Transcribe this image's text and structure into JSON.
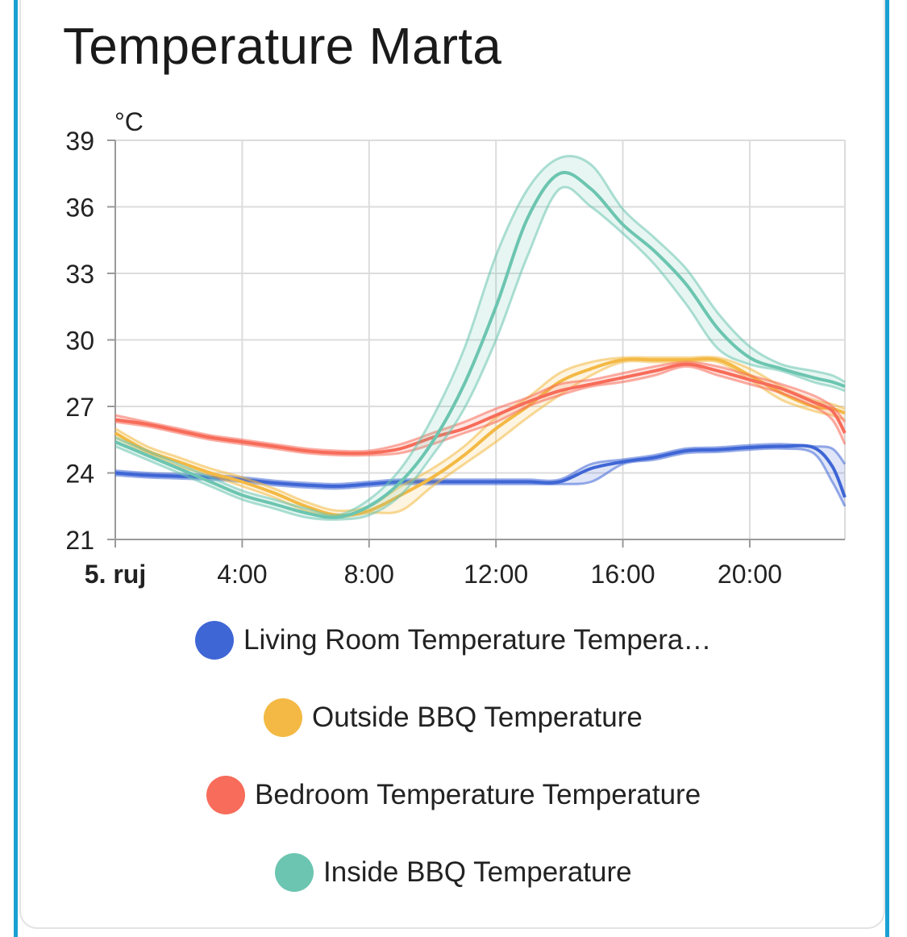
{
  "card": {
    "title": "Temperature Marta"
  },
  "chart_data": {
    "type": "line",
    "title": "Temperature Marta",
    "ylabel": "°C",
    "xlabel": "",
    "ylim": [
      21,
      39
    ],
    "yticks": [
      "21",
      "24",
      "27",
      "30",
      "33",
      "36",
      "39"
    ],
    "xlim": [
      0,
      23
    ],
    "xticks": [
      {
        "hour": 0,
        "label": "5. ruj",
        "bold": true
      },
      {
        "hour": 4,
        "label": "4:00"
      },
      {
        "hour": 8,
        "label": "8:00"
      },
      {
        "hour": 12,
        "label": "12:00"
      },
      {
        "hour": 16,
        "label": "16:00"
      },
      {
        "hour": 20,
        "label": "20:00"
      }
    ],
    "grid": true,
    "legend_position": "bottom",
    "x": [
      0,
      1,
      2,
      3,
      4,
      5,
      6,
      7,
      8,
      9,
      10,
      11,
      12,
      13,
      14,
      15,
      16,
      17,
      18,
      19,
      20,
      21,
      22,
      22.6,
      23
    ],
    "series": [
      {
        "name": "Living Room Temperature Tempera…",
        "color": "#3f66d5",
        "values": [
          24.0,
          23.9,
          23.85,
          23.8,
          23.7,
          23.55,
          23.45,
          23.4,
          23.5,
          23.6,
          23.6,
          23.6,
          23.6,
          23.6,
          23.6,
          24.2,
          24.5,
          24.7,
          25.0,
          25.05,
          25.15,
          25.2,
          25.15,
          24.3,
          22.9
        ],
        "band_low": [
          23.9,
          23.8,
          23.75,
          23.7,
          23.6,
          23.45,
          23.35,
          23.3,
          23.4,
          23.5,
          23.5,
          23.5,
          23.5,
          23.5,
          23.5,
          23.6,
          24.4,
          24.6,
          24.9,
          24.95,
          25.05,
          25.1,
          24.9,
          23.6,
          22.5
        ],
        "band_high": [
          24.1,
          24.0,
          23.95,
          23.9,
          23.8,
          23.65,
          23.55,
          23.5,
          23.6,
          23.7,
          23.7,
          23.7,
          23.7,
          23.7,
          23.7,
          24.4,
          24.6,
          24.8,
          25.1,
          25.15,
          25.25,
          25.3,
          25.2,
          25.1,
          24.4
        ]
      },
      {
        "name": "Outside BBQ Temperature",
        "color": "#f3b944",
        "values": [
          25.8,
          25.0,
          24.5,
          24.0,
          23.6,
          23.1,
          22.5,
          22.1,
          22.3,
          23.0,
          23.8,
          24.8,
          26.0,
          27.0,
          28.1,
          28.7,
          29.1,
          29.1,
          29.1,
          29.1,
          28.4,
          27.6,
          27.0,
          26.9,
          26.7
        ],
        "band_low": [
          25.6,
          24.9,
          24.3,
          23.9,
          23.4,
          22.9,
          22.3,
          22.0,
          22.2,
          22.3,
          23.4,
          24.4,
          25.4,
          26.5,
          27.5,
          28.4,
          29.0,
          29.0,
          29.0,
          29.0,
          28.2,
          27.3,
          26.8,
          26.6,
          26.4
        ],
        "band_high": [
          26.0,
          25.2,
          24.7,
          24.2,
          23.8,
          23.3,
          22.7,
          22.3,
          22.5,
          23.4,
          24.2,
          25.2,
          26.5,
          27.4,
          28.5,
          29.0,
          29.2,
          29.2,
          29.2,
          29.2,
          28.7,
          27.9,
          27.3,
          27.1,
          26.9
        ]
      },
      {
        "name": "Bedroom Temperature Temperature",
        "color": "#f76c5a",
        "values": [
          26.4,
          26.2,
          25.9,
          25.6,
          25.4,
          25.2,
          25.0,
          24.9,
          24.9,
          25.1,
          25.6,
          26.0,
          26.6,
          27.2,
          27.7,
          28.0,
          28.3,
          28.6,
          28.9,
          28.6,
          28.2,
          27.8,
          27.2,
          26.8,
          25.8
        ],
        "band_low": [
          26.3,
          26.1,
          25.8,
          25.5,
          25.3,
          25.1,
          24.9,
          24.8,
          24.8,
          24.9,
          25.3,
          25.8,
          26.3,
          27.0,
          27.5,
          27.9,
          28.1,
          28.4,
          28.8,
          28.4,
          28.0,
          27.6,
          27.0,
          26.4,
          25.3
        ],
        "band_high": [
          26.6,
          26.3,
          26.0,
          25.7,
          25.5,
          25.3,
          25.1,
          25.0,
          25.0,
          25.3,
          25.8,
          26.3,
          26.9,
          27.4,
          28.0,
          28.2,
          28.5,
          28.8,
          29.0,
          28.8,
          28.4,
          28.0,
          27.5,
          27.0,
          26.3
        ]
      },
      {
        "name": "Inside BBQ Temperature",
        "color": "#6cc5b0",
        "values": [
          25.4,
          24.8,
          24.2,
          23.6,
          23.0,
          22.6,
          22.2,
          22.0,
          22.5,
          23.6,
          25.4,
          28.0,
          31.5,
          35.5,
          37.5,
          36.8,
          35.2,
          34.0,
          32.5,
          30.5,
          29.2,
          28.7,
          28.3,
          28.1,
          27.9
        ],
        "band_low": [
          25.2,
          24.6,
          24.0,
          23.4,
          22.8,
          22.4,
          22.0,
          21.9,
          22.1,
          23.0,
          24.8,
          26.9,
          30.0,
          33.8,
          36.8,
          36.0,
          34.8,
          33.4,
          31.6,
          29.6,
          28.9,
          28.6,
          28.1,
          27.9,
          27.7
        ],
        "band_high": [
          25.6,
          25.0,
          24.4,
          23.8,
          23.2,
          22.8,
          22.4,
          22.1,
          22.8,
          24.2,
          26.5,
          29.6,
          33.8,
          36.8,
          38.2,
          37.9,
          35.9,
          34.6,
          33.2,
          31.2,
          29.7,
          28.9,
          28.6,
          28.4,
          28.1
        ]
      }
    ]
  }
}
